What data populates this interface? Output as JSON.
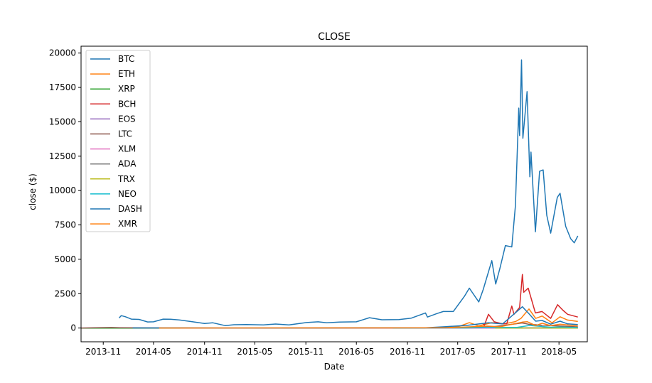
{
  "chart_data": {
    "type": "line",
    "title": "CLOSE",
    "xlabel": "Date",
    "ylabel": "close ($)",
    "x_range": [
      "2013-08-13",
      "2018-08-11"
    ],
    "ylim": [
      -1000,
      20500
    ],
    "x_ticks": [
      "2013-11",
      "2014-05",
      "2014-11",
      "2015-05",
      "2015-11",
      "2016-05",
      "2016-11",
      "2017-05",
      "2017-11",
      "2018-05"
    ],
    "y_ticks": [
      0,
      2500,
      5000,
      7500,
      10000,
      12500,
      15000,
      17500,
      20000
    ],
    "legend_position": "top-left",
    "grid": false,
    "series": [
      {
        "name": "BTC",
        "color": "#1f77b4",
        "points": [
          [
            "2013-12-28",
            730
          ],
          [
            "2014-01-05",
            900
          ],
          [
            "2014-01-20",
            820
          ],
          [
            "2014-02-10",
            650
          ],
          [
            "2014-03-10",
            630
          ],
          [
            "2014-04-10",
            440
          ],
          [
            "2014-05-01",
            450
          ],
          [
            "2014-06-05",
            650
          ],
          [
            "2014-07-01",
            640
          ],
          [
            "2014-08-01",
            590
          ],
          [
            "2014-09-15",
            470
          ],
          [
            "2014-11-01",
            330
          ],
          [
            "2014-12-01",
            380
          ],
          [
            "2015-01-14",
            180
          ],
          [
            "2015-02-15",
            240
          ],
          [
            "2015-04-01",
            250
          ],
          [
            "2015-06-01",
            225
          ],
          [
            "2015-07-15",
            290
          ],
          [
            "2015-09-01",
            230
          ],
          [
            "2015-11-04",
            400
          ],
          [
            "2015-12-15",
            450
          ],
          [
            "2016-01-15",
            380
          ],
          [
            "2016-03-01",
            430
          ],
          [
            "2016-05-01",
            450
          ],
          [
            "2016-06-17",
            750
          ],
          [
            "2016-08-01",
            600
          ],
          [
            "2016-10-01",
            620
          ],
          [
            "2016-11-15",
            720
          ],
          [
            "2017-01-05",
            1100
          ],
          [
            "2017-01-12",
            800
          ],
          [
            "2017-02-15",
            1050
          ],
          [
            "2017-03-10",
            1200
          ],
          [
            "2017-04-15",
            1200
          ],
          [
            "2017-05-25",
            2300
          ],
          [
            "2017-06-12",
            2900
          ],
          [
            "2017-07-16",
            1900
          ],
          [
            "2017-08-01",
            2800
          ],
          [
            "2017-09-01",
            4900
          ],
          [
            "2017-09-15",
            3200
          ],
          [
            "2017-10-01",
            4400
          ],
          [
            "2017-10-20",
            6000
          ],
          [
            "2017-11-12",
            5900
          ],
          [
            "2017-11-25",
            8900
          ],
          [
            "2017-12-07",
            16000
          ],
          [
            "2017-12-10",
            14000
          ],
          [
            "2017-12-17",
            19500
          ],
          [
            "2017-12-22",
            13800
          ],
          [
            "2018-01-06",
            17200
          ],
          [
            "2018-01-16",
            11000
          ],
          [
            "2018-01-20",
            12800
          ],
          [
            "2018-02-05",
            7000
          ],
          [
            "2018-02-20",
            11400
          ],
          [
            "2018-03-05",
            11500
          ],
          [
            "2018-03-18",
            8200
          ],
          [
            "2018-04-01",
            6900
          ],
          [
            "2018-04-25",
            9500
          ],
          [
            "2018-05-05",
            9800
          ],
          [
            "2018-05-25",
            7400
          ],
          [
            "2018-06-12",
            6500
          ],
          [
            "2018-06-25",
            6200
          ],
          [
            "2018-07-08",
            6700
          ]
        ]
      },
      {
        "name": "ETH",
        "color": "#ff7f0e",
        "points": [
          [
            "2015-08-07",
            3
          ],
          [
            "2016-03-15",
            12
          ],
          [
            "2016-06-15",
            20
          ],
          [
            "2017-01-01",
            8
          ],
          [
            "2017-03-15",
            40
          ],
          [
            "2017-05-01",
            80
          ],
          [
            "2017-06-12",
            390
          ],
          [
            "2017-07-15",
            160
          ],
          [
            "2017-09-01",
            390
          ],
          [
            "2017-10-15",
            300
          ],
          [
            "2017-11-25",
            470
          ],
          [
            "2017-12-15",
            700
          ],
          [
            "2018-01-13",
            1390
          ],
          [
            "2018-02-06",
            700
          ],
          [
            "2018-03-01",
            870
          ],
          [
            "2018-04-06",
            380
          ],
          [
            "2018-05-05",
            820
          ],
          [
            "2018-06-01",
            580
          ],
          [
            "2018-07-08",
            480
          ]
        ]
      },
      {
        "name": "XRP",
        "color": "#2ca02c",
        "points": [
          [
            "2013-08-13",
            0
          ],
          [
            "2017-03-15",
            0
          ],
          [
            "2017-05-15",
            0.4
          ],
          [
            "2017-12-01",
            1
          ],
          [
            "2018-01-07",
            3
          ],
          [
            "2018-03-01",
            1
          ],
          [
            "2018-07-08",
            0.5
          ]
        ]
      },
      {
        "name": "BCH",
        "color": "#d62728",
        "points": [
          [
            "2017-08-01",
            300
          ],
          [
            "2017-08-05",
            200
          ],
          [
            "2017-08-20",
            1000
          ],
          [
            "2017-09-10",
            450
          ],
          [
            "2017-10-10",
            300
          ],
          [
            "2017-10-25",
            320
          ],
          [
            "2017-11-12",
            1600
          ],
          [
            "2017-11-20",
            1000
          ],
          [
            "2017-12-10",
            1500
          ],
          [
            "2017-12-20",
            3900
          ],
          [
            "2017-12-25",
            2600
          ],
          [
            "2018-01-10",
            2900
          ],
          [
            "2018-02-05",
            1100
          ],
          [
            "2018-03-01",
            1200
          ],
          [
            "2018-04-01",
            700
          ],
          [
            "2018-04-26",
            1700
          ],
          [
            "2018-05-15",
            1300
          ],
          [
            "2018-06-01",
            1000
          ],
          [
            "2018-07-08",
            800
          ]
        ]
      },
      {
        "name": "EOS",
        "color": "#9467bd",
        "points": [
          [
            "2017-07-01",
            3
          ],
          [
            "2017-12-01",
            5
          ],
          [
            "2018-01-15",
            15
          ],
          [
            "2018-04-29",
            20
          ],
          [
            "2018-07-08",
            8
          ]
        ]
      },
      {
        "name": "LTC",
        "color": "#8c564b",
        "points": [
          [
            "2013-08-13",
            3
          ],
          [
            "2013-12-01",
            40
          ],
          [
            "2014-01-01",
            25
          ],
          [
            "2014-06-01",
            10
          ],
          [
            "2015-01-01",
            3
          ],
          [
            "2017-03-15",
            10
          ],
          [
            "2017-06-01",
            40
          ],
          [
            "2017-09-01",
            80
          ],
          [
            "2017-12-19",
            370
          ],
          [
            "2018-01-10",
            280
          ],
          [
            "2018-03-01",
            200
          ],
          [
            "2018-05-05",
            150
          ],
          [
            "2018-07-08",
            80
          ]
        ]
      },
      {
        "name": "XLM",
        "color": "#e377c2",
        "points": [
          [
            "2014-08-05",
            0
          ],
          [
            "2017-03-15",
            0
          ],
          [
            "2018-01-04",
            0.9
          ],
          [
            "2018-07-08",
            0.3
          ]
        ]
      },
      {
        "name": "ADA",
        "color": "#7f7f7f",
        "points": [
          [
            "2017-10-01",
            0
          ],
          [
            "2018-01-04",
            1.1
          ],
          [
            "2018-07-08",
            0.15
          ]
        ]
      },
      {
        "name": "TRX",
        "color": "#bcbd22",
        "points": [
          [
            "2017-09-13",
            0
          ],
          [
            "2018-01-05",
            0.2
          ],
          [
            "2018-07-08",
            0.03
          ]
        ]
      },
      {
        "name": "NEO",
        "color": "#17becf",
        "points": [
          [
            "2016-09-09",
            0.2
          ],
          [
            "2017-06-01",
            10
          ],
          [
            "2017-08-15",
            50
          ],
          [
            "2017-12-01",
            45
          ],
          [
            "2018-01-15",
            190
          ],
          [
            "2018-04-01",
            60
          ],
          [
            "2018-05-05",
            80
          ],
          [
            "2018-07-08",
            35
          ]
        ]
      },
      {
        "name": "DASH",
        "color": "#1f77b4",
        "points": [
          [
            "2014-02-15",
            10
          ],
          [
            "2014-05-01",
            6
          ],
          [
            "2015-01-01",
            2
          ],
          [
            "2016-01-01",
            3
          ],
          [
            "2017-01-01",
            12
          ],
          [
            "2017-03-20",
            100
          ],
          [
            "2017-06-01",
            190
          ],
          [
            "2017-08-20",
            380
          ],
          [
            "2017-10-10",
            300
          ],
          [
            "2017-12-20",
            1550
          ],
          [
            "2018-01-10",
            1100
          ],
          [
            "2018-02-06",
            500
          ],
          [
            "2018-03-01",
            550
          ],
          [
            "2018-04-01",
            280
          ],
          [
            "2018-05-05",
            500
          ],
          [
            "2018-06-01",
            300
          ],
          [
            "2018-07-08",
            250
          ]
        ]
      },
      {
        "name": "XMR",
        "color": "#ff7f0e",
        "points": [
          [
            "2014-05-21",
            2
          ],
          [
            "2016-08-20",
            10
          ],
          [
            "2017-01-01",
            14
          ],
          [
            "2017-04-01",
            25
          ],
          [
            "2017-08-15",
            140
          ],
          [
            "2017-10-01",
            90
          ],
          [
            "2017-12-20",
            430
          ],
          [
            "2018-01-07",
            460
          ],
          [
            "2018-02-06",
            180
          ],
          [
            "2018-03-01",
            350
          ],
          [
            "2018-04-01",
            180
          ],
          [
            "2018-05-05",
            280
          ],
          [
            "2018-07-08",
            150
          ]
        ]
      }
    ]
  }
}
